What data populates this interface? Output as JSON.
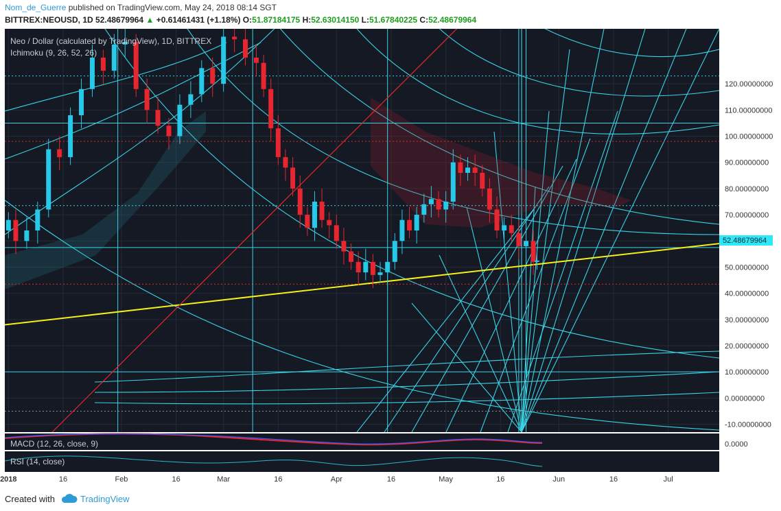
{
  "header": {
    "author": "Nom_de_Guerre",
    "published_text": " published on TradingView.com, May 24, 2018 08:14 SGT",
    "symbol": "BITTREX:NEOUSD, 1D",
    "last": "52.48679964",
    "change": "+0.61461431 (+1.18%)",
    "open_label": "O:",
    "open": "51.87184175",
    "high_label": "H:",
    "high": "52.63014150",
    "low_label": "L:",
    "low": "51.67840225",
    "close_label": "C:",
    "close": "52.48679964"
  },
  "legend": {
    "main": "Neo / Dollar (calculated by TradingView), 1D, BITTREX",
    "ichimoku": "Ichimoku (9, 26, 52, 26)"
  },
  "indicators": {
    "macd_label": "MACD (12, 26, close, 9)",
    "macd_value": "0.0000",
    "rsi_label": "RSI (14, close)"
  },
  "price_label": "52.48679964",
  "footer": {
    "created_with": "Created with",
    "brand": "TradingView"
  },
  "colors": {
    "background": "#151924",
    "grid": "#252a36",
    "fib": "#39d4e6",
    "trend_yellow": "#f6f01a",
    "trend_red": "#e12a2a",
    "up": "#28c8e8",
    "down": "#e8262f",
    "price_tag": "#2ee8f8"
  },
  "chart_data": {
    "type": "candlestick",
    "y_ticks": [
      "120.00000000",
      "110.00000000",
      "100.00000000",
      "90.00000000",
      "80.00000000",
      "70.00000000",
      "60.00000000",
      "50.00000000",
      "40.00000000",
      "30.00000000",
      "20.00000000",
      "10.00000000",
      "0.00000000",
      "-10.00000000"
    ],
    "y_tick_values": [
      120,
      110,
      100,
      90,
      80,
      70,
      60,
      50,
      40,
      30,
      20,
      10,
      0,
      -10
    ],
    "ylim": [
      -13,
      141
    ],
    "x_ticks": [
      "2018",
      "16",
      "Feb",
      "16",
      "Mar",
      "16",
      "Apr",
      "16",
      "May",
      "16",
      "Jun",
      "16",
      "Jul"
    ],
    "x_tick_days": [
      1,
      16,
      32,
      47,
      60,
      75,
      91,
      106,
      121,
      136,
      152,
      167,
      182
    ],
    "xlim": [
      0,
      196
    ],
    "horizontal_levels": [
      {
        "value": 123,
        "style": "dotted",
        "color": "#39d4e6"
      },
      {
        "value": 105,
        "style": "solid",
        "color": "#39d4e6"
      },
      {
        "value": 98,
        "style": "dotted",
        "color": "#e12a2a"
      },
      {
        "value": 73.5,
        "style": "dotted",
        "color": "#39d4e6"
      },
      {
        "value": 57.5,
        "style": "solid",
        "color": "#39d4e6"
      },
      {
        "value": 43.5,
        "style": "dotted",
        "color": "#e12a2a"
      },
      {
        "value": 10,
        "style": "solid",
        "color": "#39d4e6"
      },
      {
        "value": -5,
        "style": "dotted",
        "color": "#8a8f9a"
      }
    ],
    "vertical_levels_day": [
      31,
      68,
      105,
      141,
      143
    ],
    "trendline_yellow": {
      "from": [
        0,
        28
      ],
      "to": [
        196,
        59
      ]
    },
    "trendline_red": {
      "from": [
        13,
        -13
      ],
      "to": [
        124,
        141
      ]
    },
    "close_series": [
      {
        "day": 1,
        "close": 68
      },
      {
        "day": 3,
        "close": 60
      },
      {
        "day": 6,
        "close": 64
      },
      {
        "day": 9,
        "close": 72
      },
      {
        "day": 12,
        "close": 95
      },
      {
        "day": 15,
        "close": 92
      },
      {
        "day": 18,
        "close": 108
      },
      {
        "day": 21,
        "close": 118
      },
      {
        "day": 24,
        "close": 130
      },
      {
        "day": 27,
        "close": 125
      },
      {
        "day": 30,
        "close": 135
      },
      {
        "day": 33,
        "close": 136
      },
      {
        "day": 36,
        "close": 118
      },
      {
        "day": 39,
        "close": 110
      },
      {
        "day": 42,
        "close": 104
      },
      {
        "day": 45,
        "close": 100
      },
      {
        "day": 48,
        "close": 112
      },
      {
        "day": 51,
        "close": 116
      },
      {
        "day": 54,
        "close": 126
      },
      {
        "day": 57,
        "close": 120
      },
      {
        "day": 60,
        "close": 138
      },
      {
        "day": 63,
        "close": 137
      },
      {
        "day": 66,
        "close": 130
      },
      {
        "day": 69,
        "close": 128
      },
      {
        "day": 71,
        "close": 118
      },
      {
        "day": 73,
        "close": 103
      },
      {
        "day": 75,
        "close": 92
      },
      {
        "day": 77,
        "close": 88
      },
      {
        "day": 79,
        "close": 80
      },
      {
        "day": 81,
        "close": 70
      },
      {
        "day": 83,
        "close": 65
      },
      {
        "day": 85,
        "close": 75
      },
      {
        "day": 87,
        "close": 68
      },
      {
        "day": 89,
        "close": 66
      },
      {
        "day": 91,
        "close": 60
      },
      {
        "day": 93,
        "close": 56
      },
      {
        "day": 95,
        "close": 52
      },
      {
        "day": 97,
        "close": 48
      },
      {
        "day": 99,
        "close": 52
      },
      {
        "day": 101,
        "close": 47
      },
      {
        "day": 103,
        "close": 48
      },
      {
        "day": 105,
        "close": 52
      },
      {
        "day": 107,
        "close": 60
      },
      {
        "day": 109,
        "close": 68
      },
      {
        "day": 111,
        "close": 64
      },
      {
        "day": 113,
        "close": 70
      },
      {
        "day": 115,
        "close": 74
      },
      {
        "day": 117,
        "close": 76
      },
      {
        "day": 119,
        "close": 72
      },
      {
        "day": 121,
        "close": 75
      },
      {
        "day": 123,
        "close": 90
      },
      {
        "day": 125,
        "close": 86
      },
      {
        "day": 127,
        "close": 88
      },
      {
        "day": 129,
        "close": 86
      },
      {
        "day": 131,
        "close": 80
      },
      {
        "day": 133,
        "close": 72
      },
      {
        "day": 135,
        "close": 64
      },
      {
        "day": 137,
        "close": 66
      },
      {
        "day": 139,
        "close": 63
      },
      {
        "day": 141,
        "close": 58
      },
      {
        "day": 143,
        "close": 60
      },
      {
        "day": 145,
        "close": 52
      },
      {
        "day": 146,
        "close": 52.49
      }
    ]
  }
}
